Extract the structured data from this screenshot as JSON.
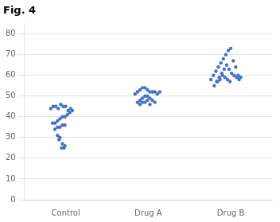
{
  "chart_data": {
    "type": "scatter",
    "title": "Fig. 4",
    "series": [
      {
        "color": "#4472C4",
        "x": [
          0.82,
          0.85,
          0.88,
          0.91,
          0.94,
          0.97,
          1.0,
          1.03,
          1.06,
          0.84,
          0.87,
          0.9,
          0.93,
          0.96,
          0.99,
          1.02,
          1.05,
          1.08,
          0.87,
          0.9,
          0.93,
          0.96,
          0.99,
          0.9,
          0.93,
          0.96,
          0.99,
          0.92,
          0.95,
          0.98
        ],
        "values": [
          44,
          45,
          45,
          44,
          46,
          45,
          45,
          43,
          44,
          37,
          37,
          38,
          39,
          40,
          40,
          41,
          42,
          43,
          34,
          35,
          35,
          36,
          36,
          31,
          30,
          27,
          26,
          29,
          25,
          25
        ]
      },
      {
        "color": "#4472C4",
        "x": [
          1.84,
          1.87,
          1.9,
          1.93,
          1.96,
          1.99,
          2.02,
          2.05,
          2.08,
          2.11,
          2.14,
          1.87,
          1.9,
          1.93,
          1.96,
          1.99,
          2.02,
          2.05,
          2.08,
          1.9,
          1.93,
          1.96,
          1.99,
          2.02
        ],
        "values": [
          51,
          52,
          53,
          54,
          54,
          53,
          52,
          52,
          52,
          51,
          52,
          47,
          48,
          49,
          50,
          50,
          49,
          48,
          47,
          46,
          47,
          47,
          48,
          46
        ]
      },
      {
        "color": "#4472C4",
        "x": [
          2.76,
          2.79,
          2.82,
          2.85,
          2.88,
          2.91,
          2.94,
          2.97,
          3.0,
          3.03,
          3.06,
          3.09,
          3.12,
          2.8,
          2.83,
          2.86,
          2.89,
          2.92,
          2.95,
          2.98,
          3.01,
          3.04,
          3.07,
          3.1,
          2.84,
          2.87,
          2.9,
          2.93,
          2.96,
          2.99
        ],
        "values": [
          58,
          60,
          62,
          64,
          66,
          68,
          70,
          72,
          73,
          67,
          64,
          60,
          59,
          55,
          57,
          59,
          61,
          63,
          65,
          63,
          61,
          60,
          59,
          58,
          57,
          58,
          60,
          59,
          58,
          57
        ]
      }
    ],
    "xlim": [
      0.5,
      3.5
    ],
    "xticks": [
      {
        "value": 1,
        "label": "Control"
      },
      {
        "value": 2,
        "label": "Drug A"
      },
      {
        "value": 3,
        "label": "Drug B"
      }
    ],
    "ylim": [
      0,
      85
    ],
    "yticks": [
      0,
      10,
      20,
      30,
      40,
      50,
      60,
      70,
      80
    ],
    "grid": "y"
  }
}
